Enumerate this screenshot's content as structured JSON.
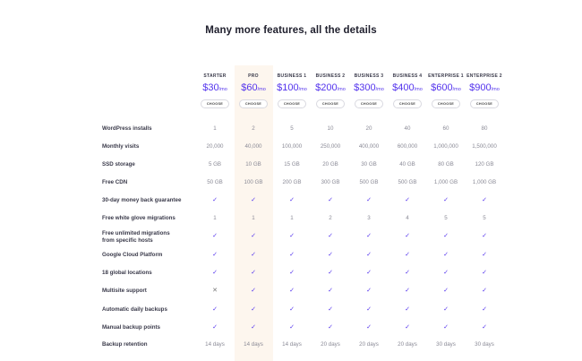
{
  "title": "Many more features, all the details",
  "plans": [
    {
      "name": "STARTER",
      "price": "$30",
      "per": "/mo",
      "button": "CHOOSE"
    },
    {
      "name": "PRO",
      "price": "$60",
      "per": "/mo",
      "button": "CHOOSE"
    },
    {
      "name": "BUSINESS 1",
      "price": "$100",
      "per": "/mo",
      "button": "CHOOSE"
    },
    {
      "name": "BUSINESS 2",
      "price": "$200",
      "per": "/mo",
      "button": "CHOOSE"
    },
    {
      "name": "BUSINESS 3",
      "price": "$300",
      "per": "/mo",
      "button": "CHOOSE"
    },
    {
      "name": "BUSINESS 4",
      "price": "$400",
      "per": "/mo",
      "button": "CHOOSE"
    },
    {
      "name": "ENTERPRISE 1",
      "price": "$600",
      "per": "/mo",
      "button": "CHOOSE"
    },
    {
      "name": "ENTERPRISE 2",
      "price": "$900",
      "per": "/mo",
      "button": "CHOOSE"
    }
  ],
  "features": [
    {
      "label": "WordPress installs",
      "values": [
        "1",
        "2",
        "5",
        "10",
        "20",
        "40",
        "60",
        "80"
      ]
    },
    {
      "label": "Monthly visits",
      "values": [
        "20,000",
        "40,000",
        "100,000",
        "250,000",
        "400,000",
        "600,000",
        "1,000,000",
        "1,500,000"
      ]
    },
    {
      "label": "SSD storage",
      "values": [
        "5 GB",
        "10 GB",
        "15 GB",
        "20 GB",
        "30 GB",
        "40 GB",
        "80 GB",
        "120 GB"
      ]
    },
    {
      "label": "Free CDN",
      "values": [
        "50 GB",
        "100 GB",
        "200 GB",
        "300 GB",
        "500 GB",
        "500 GB",
        "1,000 GB",
        "1,000 GB"
      ]
    },
    {
      "label": "30-day money back guarantee",
      "values": [
        "check",
        "check",
        "check",
        "check",
        "check",
        "check",
        "check",
        "check"
      ]
    },
    {
      "label": "Free white glove migrations",
      "values": [
        "1",
        "1",
        "1",
        "2",
        "3",
        "4",
        "5",
        "5"
      ]
    },
    {
      "label": "Free unlimited migrations from specific hosts",
      "values": [
        "check",
        "check",
        "check",
        "check",
        "check",
        "check",
        "check",
        "check"
      ]
    },
    {
      "label": "Google Cloud Platform",
      "values": [
        "check",
        "check",
        "check",
        "check",
        "check",
        "check",
        "check",
        "check"
      ]
    },
    {
      "label": "18 global locations",
      "values": [
        "check",
        "check",
        "check",
        "check",
        "check",
        "check",
        "check",
        "check"
      ]
    },
    {
      "label": "Multisite support",
      "values": [
        "cross",
        "check",
        "check",
        "check",
        "check",
        "check",
        "check",
        "check"
      ]
    },
    {
      "label": "Automatic daily backups",
      "values": [
        "check",
        "check",
        "check",
        "check",
        "check",
        "check",
        "check",
        "check"
      ]
    },
    {
      "label": "Manual backup points",
      "values": [
        "check",
        "check",
        "check",
        "check",
        "check",
        "check",
        "check",
        "check"
      ]
    },
    {
      "label": "Backup retention",
      "values": [
        "14 days",
        "14 days",
        "14 days",
        "20 days",
        "20 days",
        "20 days",
        "30 days",
        "30 days"
      ]
    }
  ],
  "symbols": {
    "check": "✓",
    "cross": "✕"
  },
  "colors": {
    "accent": "#5333ed",
    "pro_highlight": "#fdf6ee"
  }
}
